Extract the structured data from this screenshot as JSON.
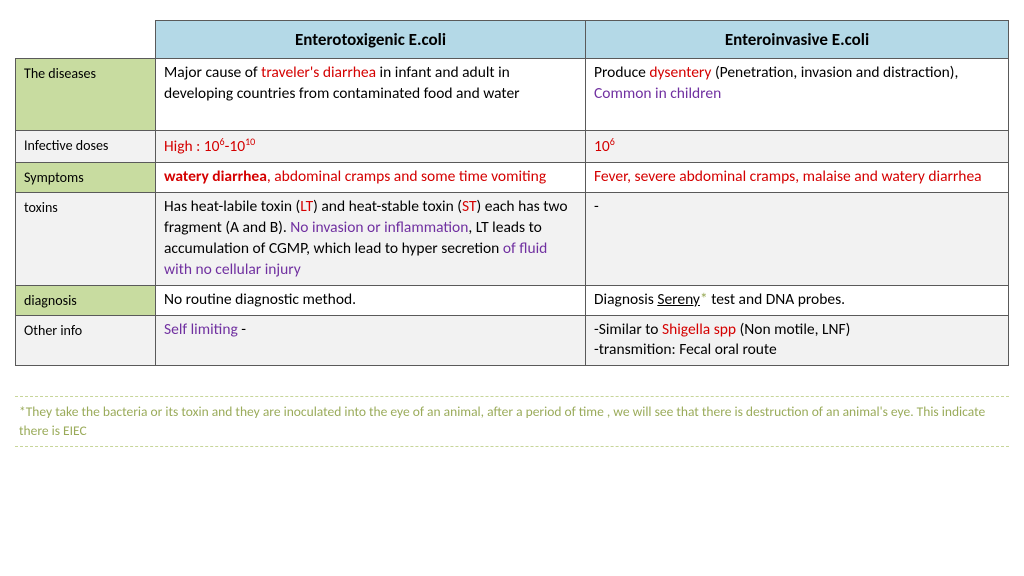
{
  "headers": {
    "col1": "Enterotoxigenic E.coli",
    "col2": "Enteroinvasive E.coli"
  },
  "rows": {
    "diseases": {
      "label": "The diseases",
      "c1_a": "Major cause of ",
      "c1_b": "traveler's diarrhea",
      "c1_c": " in infant and adult in developing countries from contaminated food and water",
      "c2_a": "Produce ",
      "c2_b": "dysentery",
      "c2_c": " (Penetration, invasion and distraction), ",
      "c2_d": "Common in children"
    },
    "dose": {
      "label": "Infective doses",
      "c1_a": "High : 10",
      "c1_b": "6",
      "c1_c": "-10",
      "c1_d": "10",
      "c2_a": "10",
      "c2_b": "6"
    },
    "symptoms": {
      "label": "Symptoms",
      "c1_a": "watery diarrhea",
      "c1_b": ", abdominal cramps and some time vomiting",
      "c2_a": "Fever, severe abdominal cramps, malaise and watery diarrhea"
    },
    "toxins": {
      "label": "toxins",
      "c1_a": "Has heat-labile toxin (",
      "c1_b": "LT",
      "c1_c": ") and heat-stable toxin (",
      "c1_d": "ST",
      "c1_e": ") each has two fragment (A and B). ",
      "c1_f": "No invasion or inflammation",
      "c1_g": ", LT leads to accumulation of CGMP, which lead to hyper secretion ",
      "c1_h": "of fluid with no cellular injury",
      "c2_a": "-"
    },
    "diagnosis": {
      "label": "diagnosis",
      "c1_a": "No routine diagnostic method.",
      "c2_a": "Diagnosis ",
      "c2_b": "Sereny",
      "c2_c": "*",
      "c2_d": " test and DNA probes."
    },
    "other": {
      "label": "Other info",
      "c1_a": "Self limiting",
      "c1_b": " -",
      "c2_a": "-Similar to ",
      "c2_b": "Shigella spp",
      "c2_c": " (Non motile, LNF)",
      "c2_d": "-transmition: Fecal oral route"
    }
  },
  "footnote": "*They take the bacteria or its toxin and they are inoculated into the eye of an animal, after a period of time , we will see that there is destruction of an animal's eye. This indicate there is EIEC"
}
